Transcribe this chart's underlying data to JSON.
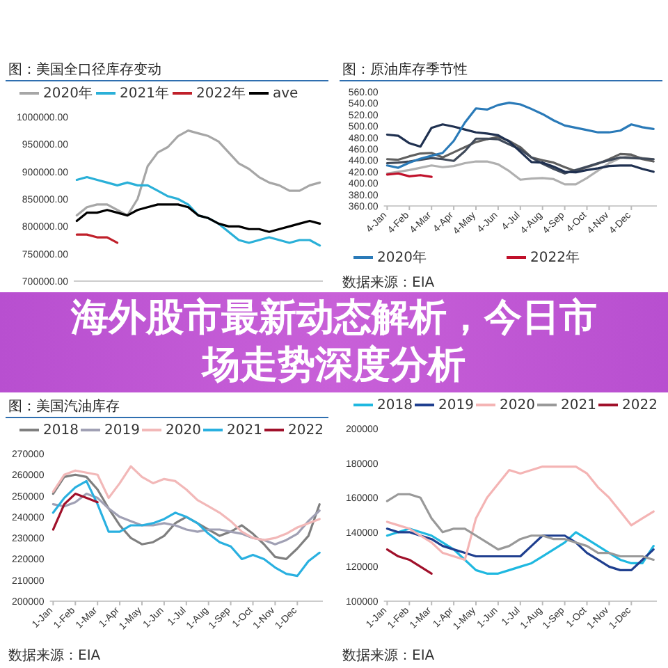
{
  "chart_data": [
    {
      "type": "line",
      "title": "图：美国全口径库存变动",
      "legend": "top",
      "tick_labels": "y",
      "ylim": [
        700000,
        1000000
      ],
      "categories": [
        null,
        null,
        null,
        null,
        null,
        null,
        null,
        null,
        null,
        null,
        null,
        null,
        null,
        null,
        null,
        null,
        null,
        null,
        null,
        null,
        null,
        null,
        null,
        null,
        null
      ],
      "yticks": [
        {
          "value": 700000,
          "label": "700000.00"
        },
        {
          "value": 750000,
          "label": "750000.00"
        },
        {
          "value": 800000,
          "label": "800000.00"
        },
        {
          "value": 850000,
          "label": "850000.00"
        },
        {
          "value": 900000,
          "label": "900000.00"
        },
        {
          "value": 950000,
          "label": "950000.00"
        },
        {
          "value": 1000000,
          "label": "1000000.00"
        }
      ],
      "series": [
        {
          "name": "2020年",
          "color": "#a6a6a6",
          "values": [
            820000,
            835000,
            840000,
            840000,
            830000,
            820000,
            850000,
            910000,
            935000,
            945000,
            965000,
            975000,
            970000,
            965000,
            955000,
            935000,
            915000,
            905000,
            890000,
            880000,
            875000,
            865000,
            865000,
            875000,
            880000
          ]
        },
        {
          "name": "2021年",
          "color": "#2ab0d8",
          "values": [
            885000,
            890000,
            885000,
            880000,
            875000,
            880000,
            875000,
            875000,
            865000,
            855000,
            850000,
            840000,
            820000,
            815000,
            805000,
            790000,
            775000,
            770000,
            775000,
            780000,
            775000,
            770000,
            775000,
            775000,
            765000
          ]
        },
        {
          "name": "2022年",
          "color": "#c0202a",
          "values": [
            785000,
            785000,
            780000,
            780000,
            770000,
            null,
            null,
            null,
            null,
            null,
            null,
            null,
            null,
            null,
            null,
            null,
            null,
            null,
            null,
            null,
            null,
            null,
            null,
            null,
            null
          ]
        },
        {
          "name": "ave",
          "color": "#000000",
          "values": [
            810000,
            825000,
            825000,
            830000,
            825000,
            820000,
            830000,
            835000,
            840000,
            840000,
            840000,
            835000,
            820000,
            815000,
            805000,
            800000,
            800000,
            795000,
            795000,
            790000,
            795000,
            800000,
            805000,
            810000,
            805000
          ]
        }
      ]
    },
    {
      "type": "line",
      "title": "图：原油库存季节性",
      "legend": "bottom",
      "ylim": [
        360,
        560
      ],
      "categories": [
        "4-Jan",
        null,
        "4-Feb",
        null,
        "4-Mar",
        null,
        "4-Apr",
        null,
        "4-May",
        null,
        "4-Jun",
        null,
        "4-Jul",
        null,
        "4-Aug",
        null,
        "4-Sep",
        null,
        "4-Oct",
        null,
        "4-Nov",
        null,
        "4-Dec",
        null,
        null
      ],
      "yticks": [
        {
          "value": 360,
          "label": "360.00"
        },
        {
          "value": 380,
          "label": "380.00"
        },
        {
          "value": 400,
          "label": "400.00"
        },
        {
          "value": 420,
          "label": "420.00"
        },
        {
          "value": 440,
          "label": "440.00"
        },
        {
          "value": 460,
          "label": "460.00"
        },
        {
          "value": 480,
          "label": "480.00"
        },
        {
          "value": 500,
          "label": "500.00"
        },
        {
          "value": 520,
          "label": "520.00"
        },
        {
          "value": 540,
          "label": "540.00"
        },
        {
          "value": 560,
          "label": "560.00"
        }
      ],
      "annotations": [
        "数据来源：EIA"
      ],
      "series": [
        {
          "color": "#b0b0b0",
          "values": [
            417,
            420,
            423,
            427,
            431,
            428,
            430,
            435,
            438,
            438,
            433,
            421,
            406,
            408,
            409,
            407,
            398,
            398,
            409,
            422,
            435,
            444,
            448,
            444,
            442
          ]
        },
        {
          "color": "#606060",
          "values": [
            442,
            441,
            447,
            452,
            453,
            445,
            454,
            463,
            472,
            477,
            481,
            474,
            463,
            445,
            440,
            436,
            428,
            421,
            428,
            434,
            442,
            451,
            450,
            442,
            438
          ]
        },
        {
          "color": "#404a5a",
          "values": [
            435,
            436,
            438,
            441,
            444,
            442,
            439,
            456,
            478,
            478,
            477,
            468,
            459,
            445,
            434,
            425,
            417,
            423,
            429,
            435,
            440,
            445,
            444,
            443,
            442
          ]
        },
        {
          "color": "#1f3050",
          "values": [
            485,
            483,
            470,
            464,
            497,
            503,
            499,
            494,
            489,
            487,
            484,
            473,
            455,
            437,
            436,
            429,
            420,
            419,
            423,
            426,
            430,
            431,
            431,
            425,
            420
          ]
        },
        {
          "name": "2020年",
          "color": "#2a7ab8",
          "values": [
            431,
            427,
            436,
            443,
            448,
            453,
            474,
            506,
            531,
            529,
            537,
            541,
            538,
            530,
            521,
            510,
            501,
            497,
            493,
            489,
            489,
            492,
            503,
            498,
            495
          ]
        },
        {
          "name": "2022年",
          "color": "#c0102a",
          "values": [
            415,
            417,
            412,
            414,
            411,
            null,
            null,
            null,
            null,
            null,
            null,
            null,
            null,
            null,
            null,
            null,
            null,
            null,
            null,
            null,
            null,
            null,
            null,
            null,
            null
          ]
        }
      ]
    },
    {
      "type": "line",
      "title": "图：美国汽油库存",
      "legend": "top",
      "ylim": [
        200000,
        270000
      ],
      "categories": [
        "1-Jan",
        null,
        "1-Feb",
        null,
        "1-Mar",
        null,
        "1-Apr",
        null,
        "1-May",
        null,
        "1-Jun",
        null,
        "1-Jul",
        null,
        "1-Aug",
        null,
        "1-Sep",
        null,
        "1-Oct",
        null,
        "1-Nov",
        null,
        "1-Dec",
        null,
        null
      ],
      "yticks": [
        200000,
        210000,
        220000,
        230000,
        240000,
        250000,
        260000,
        270000
      ],
      "annotations": [
        "数据来源：EIA"
      ],
      "series": [
        {
          "name": "2018",
          "color": "#7f7f7f",
          "values": [
            251000,
            259000,
            260000,
            259000,
            253000,
            244000,
            236000,
            230000,
            227000,
            228000,
            231000,
            237000,
            240000,
            237000,
            234000,
            231000,
            233000,
            236000,
            232000,
            227000,
            221000,
            220000,
            225000,
            231000,
            246000
          ]
        },
        {
          "name": "2019",
          "color": "#a0a0b4",
          "values": [
            246000,
            245000,
            247000,
            251000,
            249000,
            244000,
            240000,
            238000,
            236000,
            236000,
            237000,
            236000,
            234000,
            233000,
            234000,
            234000,
            233000,
            232000,
            230000,
            229000,
            227000,
            229000,
            232000,
            238000,
            243000
          ]
        },
        {
          "name": "2020",
          "color": "#f2b8b8",
          "values": [
            252000,
            260000,
            262000,
            261000,
            260000,
            249000,
            256000,
            264000,
            259000,
            256000,
            258000,
            257000,
            253000,
            248000,
            245000,
            242000,
            238000,
            233000,
            230000,
            229000,
            230000,
            232000,
            235000,
            237000,
            239000
          ]
        },
        {
          "name": "2021",
          "color": "#29b0e0",
          "values": [
            242000,
            249000,
            254000,
            257000,
            246000,
            233000,
            233000,
            236000,
            236000,
            237000,
            239000,
            242000,
            240000,
            237000,
            232000,
            228000,
            226000,
            220000,
            222000,
            220000,
            216000,
            213000,
            212000,
            219000,
            223000
          ]
        },
        {
          "name": "2022",
          "color": "#a0102a",
          "values": [
            234000,
            246000,
            251000,
            249000,
            247000,
            null,
            null,
            null,
            null,
            null,
            null,
            null,
            null,
            null,
            null,
            null,
            null,
            null,
            null,
            null,
            null,
            null,
            null,
            null,
            null
          ]
        }
      ]
    },
    {
      "type": "line",
      "legend": "top",
      "ylim": [
        100000,
        200000
      ],
      "categories": [
        "1-Jan",
        null,
        "1-Feb",
        null,
        "1-Mar",
        null,
        "1-Apr",
        null,
        "1-May",
        null,
        "1-Jun",
        null,
        "1-Jul",
        null,
        "1-Aug",
        null,
        "1-Sep",
        null,
        "1-Oct",
        null,
        "1-Nov",
        null,
        "1-Dec",
        null,
        null
      ],
      "yticks": [
        100000,
        120000,
        140000,
        160000,
        180000,
        200000
      ],
      "annotations": [
        "数据来源：EIA"
      ],
      "series": [
        {
          "name": "2018",
          "color": "#1fb8e0",
          "values": [
            138000,
            140000,
            142000,
            140000,
            138000,
            134000,
            130000,
            124000,
            118000,
            116000,
            116000,
            118000,
            120000,
            122000,
            126000,
            130000,
            134000,
            140000,
            136000,
            132000,
            128000,
            124000,
            122000,
            122000,
            132000
          ]
        },
        {
          "name": "2019",
          "color": "#1f3f8f",
          "values": [
            142000,
            140000,
            140000,
            138000,
            136000,
            132000,
            130000,
            128000,
            126000,
            126000,
            126000,
            126000,
            126000,
            132000,
            138000,
            138000,
            138000,
            134000,
            128000,
            124000,
            120000,
            118000,
            118000,
            124000,
            130000
          ]
        },
        {
          "name": "2020",
          "color": "#f4b4b4",
          "values": [
            146000,
            144000,
            142000,
            138000,
            134000,
            128000,
            126000,
            124000,
            148000,
            160000,
            168000,
            176000,
            174000,
            176000,
            178000,
            178000,
            178000,
            178000,
            174000,
            166000,
            160000,
            152000,
            144000,
            148000,
            152000
          ]
        },
        {
          "name": "2021",
          "color": "#999999",
          "values": [
            158000,
            162000,
            162000,
            160000,
            148000,
            140000,
            142000,
            142000,
            138000,
            134000,
            130000,
            132000,
            136000,
            138000,
            138000,
            136000,
            136000,
            134000,
            132000,
            128000,
            128000,
            126000,
            126000,
            126000,
            124000
          ]
        },
        {
          "name": "2022",
          "color": "#a0102a",
          "values": [
            130000,
            126000,
            124000,
            120000,
            116000,
            null,
            null,
            null,
            null,
            null,
            null,
            null,
            null,
            null,
            null,
            null,
            null,
            null,
            null,
            null,
            null,
            null,
            null,
            null,
            null
          ]
        }
      ]
    },
    {
      "type": "other",
      "title": "海外股市最新动态解析，今日市场走势深度分析"
    }
  ]
}
